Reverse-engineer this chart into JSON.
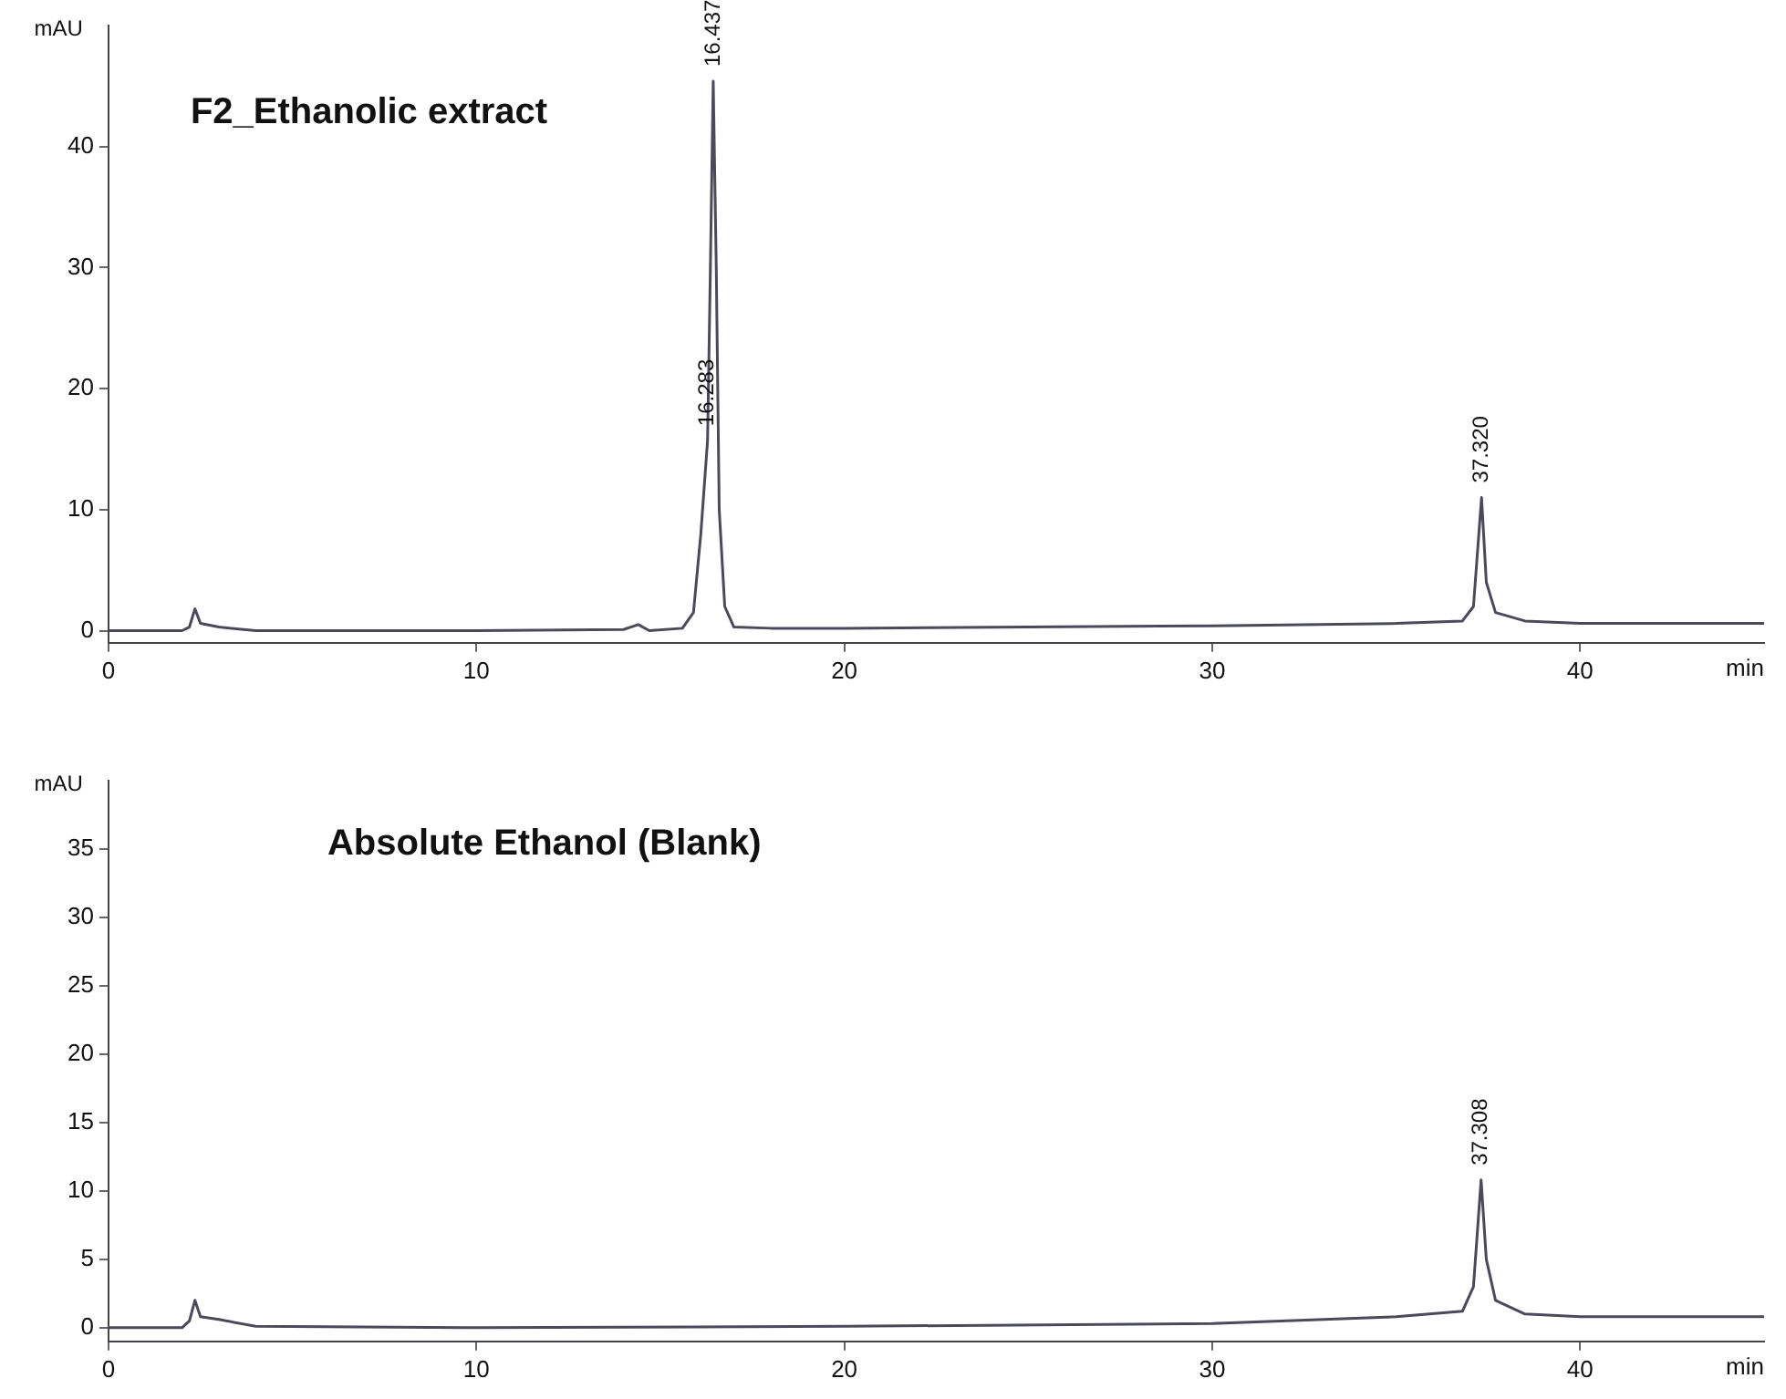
{
  "chart_data": [
    {
      "type": "line",
      "title": "F2_Ethanolic extract",
      "xlabel": "min",
      "ylabel": "mAU",
      "xlim": [
        0,
        45
      ],
      "ylim": [
        -1,
        50
      ],
      "xticks": [
        0,
        10,
        20,
        30,
        40
      ],
      "yticks": [
        0,
        10,
        20,
        30,
        40
      ],
      "grid": false,
      "legend": false,
      "x": [
        0,
        2.0,
        2.2,
        2.35,
        2.5,
        3,
        4,
        10,
        14,
        14.4,
        14.7,
        15.6,
        15.9,
        16.1,
        16.283,
        16.36,
        16.437,
        16.52,
        16.6,
        16.75,
        17,
        18,
        20,
        30,
        35,
        36.8,
        37.1,
        37.32,
        37.45,
        37.7,
        38.5,
        40,
        45
      ],
      "series": [
        {
          "color": "#4a4a5a",
          "values": [
            0,
            0,
            0.3,
            1.8,
            0.6,
            0.3,
            0,
            0,
            0.1,
            0.5,
            0,
            0.2,
            1.5,
            8,
            15.7,
            30,
            45.4,
            30,
            10,
            2,
            0.3,
            0.2,
            0.2,
            0.4,
            0.6,
            0.8,
            2,
            11,
            4,
            1.5,
            0.8,
            0.6,
            0.6
          ]
        }
      ],
      "annotations": [
        {
          "text": "16.437",
          "x": 16.437,
          "y": 45.4
        },
        {
          "text": "16.283",
          "x": 16.283,
          "y": 15.7
        },
        {
          "text": "37.320",
          "x": 37.32,
          "y": 11
        }
      ]
    },
    {
      "type": "line",
      "title": "Absolute Ethanol (Blank)",
      "xlabel": "min",
      "ylabel": "mAU",
      "xlim": [
        0,
        45
      ],
      "ylim": [
        -1,
        40
      ],
      "xticks": [
        0,
        10,
        20,
        30,
        40
      ],
      "yticks": [
        0,
        5,
        10,
        15,
        20,
        25,
        30,
        35
      ],
      "grid": false,
      "legend": false,
      "x": [
        0,
        2,
        2.2,
        2.35,
        2.5,
        3,
        4,
        10,
        20,
        30,
        35,
        36.8,
        37.1,
        37.308,
        37.45,
        37.7,
        38.5,
        40,
        45
      ],
      "series": [
        {
          "color": "#4a4a5a",
          "values": [
            0,
            0,
            0.5,
            2,
            0.8,
            0.6,
            0.1,
            0,
            0.1,
            0.3,
            0.8,
            1.2,
            3,
            10.8,
            5,
            2,
            1,
            0.8,
            0.8
          ]
        }
      ],
      "annotations": [
        {
          "text": "37.308",
          "x": 37.308,
          "y": 10.8
        }
      ]
    }
  ]
}
